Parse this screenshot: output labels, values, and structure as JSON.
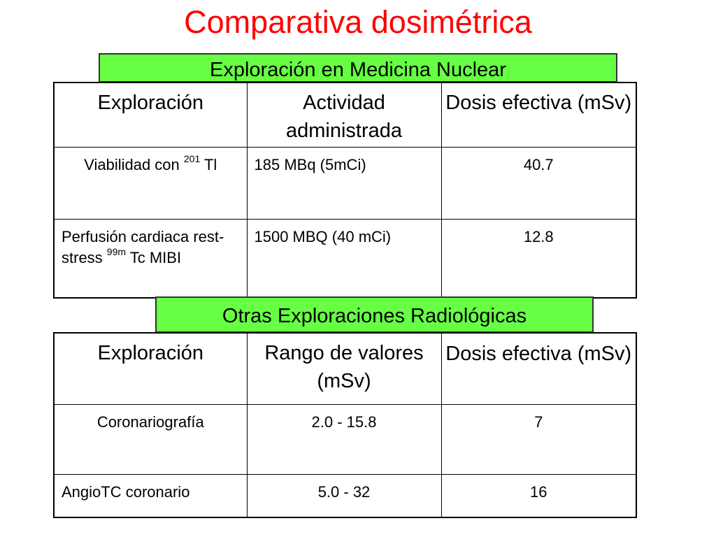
{
  "title": "Comparativa dosimétrica",
  "section1": {
    "banner": "Exploración en Medicina Nuclear",
    "headers": [
      "Exploración",
      "Actividad administrada",
      "Dosis efectiva (mSv)"
    ],
    "rows": [
      {
        "exploracion_pre": "Viabilidad con ",
        "exploracion_sup": "201",
        "exploracion_post": " Tl",
        "actividad": "185 MBq (5mCi)",
        "dosis": "40.7"
      },
      {
        "exploracion_pre": "Perfusión cardiaca rest-stress ",
        "exploracion_sup": "99m",
        "exploracion_post": " Tc MIBI",
        "actividad": "1500 MBQ (40 mCi)",
        "dosis": "12.8"
      }
    ]
  },
  "section2": {
    "banner": "Otras Exploraciones Radiológicas",
    "headers": [
      "Exploración",
      "Rango de valores (mSv)",
      "Dosis efectiva (mSv)"
    ],
    "rows": [
      {
        "exploracion": "Coronariografía",
        "rango": "2.0 - 15.8",
        "dosis": "7"
      },
      {
        "exploracion": "AngioTC coronario",
        "rango": "5.0 - 32",
        "dosis": "16"
      }
    ]
  },
  "colors": {
    "title": "#ff0000",
    "banner_fill": "#66ff44",
    "border": "#000000"
  }
}
